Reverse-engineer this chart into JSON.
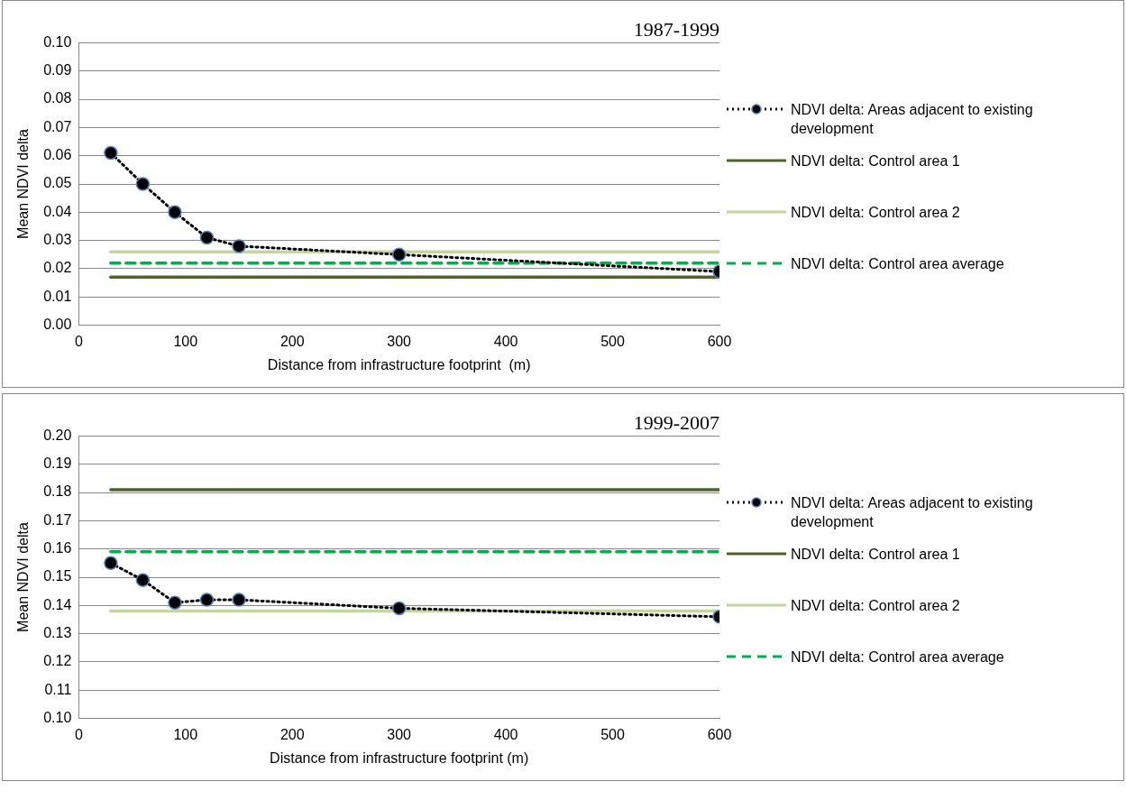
{
  "chart_data": [
    {
      "type": "line",
      "title": "1987-1999",
      "xlabel": "Distance from infrastructure footprint  (m)",
      "ylabel": "Mean NDVI delta",
      "xlim": [
        0,
        600
      ],
      "xticks": [
        0,
        100,
        200,
        300,
        400,
        500,
        600
      ],
      "ylim": [
        0,
        0.1
      ],
      "yticks": [
        {
          "value": 0,
          "label": "0.00"
        },
        {
          "value": 0.01,
          "label": "0.01"
        },
        {
          "value": 0.02,
          "label": "0.02"
        },
        {
          "value": 0.03,
          "label": "0.03"
        },
        {
          "value": 0.04,
          "label": "0.04"
        },
        {
          "value": 0.05,
          "label": "0.05"
        },
        {
          "value": 0.06,
          "label": "0.06"
        },
        {
          "value": 0.07,
          "label": "0.07"
        },
        {
          "value": 0.08,
          "label": "0.08"
        },
        {
          "value": 0.09,
          "label": "0.09"
        },
        {
          "value": 0.1,
          "label": "0.10"
        }
      ],
      "grid": "y",
      "legend": "right",
      "series": [
        {
          "name": "NDVI delta: Areas adjacent to existing development",
          "color": "#000000",
          "x": [
            30,
            60,
            90,
            120,
            150,
            300,
            600
          ],
          "values": [
            0.061,
            0.05,
            0.04,
            0.031,
            0.028,
            0.025,
            0.019
          ],
          "line_style": "dotted",
          "marker": "circle"
        },
        {
          "name": "NDVI delta: Control area 1",
          "color": "#4f6228",
          "x": [
            30,
            600
          ],
          "values": [
            0.017,
            0.017
          ],
          "line_style": "solid",
          "marker": "none"
        },
        {
          "name": "NDVI delta: Control area 2",
          "color": "#c3d69b",
          "x": [
            30,
            600
          ],
          "values": [
            0.026,
            0.026
          ],
          "line_style": "solid",
          "marker": "none"
        },
        {
          "name": "NDVI delta: Control area average",
          "color": "#00b050",
          "x": [
            30,
            600
          ],
          "values": [
            0.022,
            0.022
          ],
          "line_style": "dashed",
          "marker": "none"
        }
      ]
    },
    {
      "type": "line",
      "title": "1999-2007",
      "xlabel": "Distance from infrastructure footprint (m)",
      "ylabel": "Mean NDVI delta",
      "xlim": [
        0,
        600
      ],
      "xticks": [
        0,
        100,
        200,
        300,
        400,
        500,
        600
      ],
      "ylim": [
        0.1,
        0.2
      ],
      "yticks": [
        {
          "value": 0.1,
          "label": "0.10"
        },
        {
          "value": 0.11,
          "label": "0.11"
        },
        {
          "value": 0.12,
          "label": "0.12"
        },
        {
          "value": 0.13,
          "label": "0.13"
        },
        {
          "value": 0.14,
          "label": "0.14"
        },
        {
          "value": 0.15,
          "label": "0.15"
        },
        {
          "value": 0.16,
          "label": "0.16"
        },
        {
          "value": 0.17,
          "label": "0.17"
        },
        {
          "value": 0.18,
          "label": "0.18"
        },
        {
          "value": 0.19,
          "label": "0.19"
        },
        {
          "value": 0.2,
          "label": "0.20"
        }
      ],
      "grid": "y",
      "legend": "right",
      "series": [
        {
          "name": "NDVI delta: Areas adjacent to existing development",
          "color": "#000000",
          "x": [
            30,
            60,
            90,
            120,
            150,
            300,
            600
          ],
          "values": [
            0.155,
            0.149,
            0.141,
            0.142,
            0.142,
            0.139,
            0.136
          ],
          "line_style": "dotted",
          "marker": "circle"
        },
        {
          "name": "NDVI delta: Control area 1",
          "color": "#4f6228",
          "x": [
            30,
            600
          ],
          "values": [
            0.181,
            0.181
          ],
          "line_style": "solid",
          "marker": "none"
        },
        {
          "name": "NDVI delta: Control area 2",
          "color": "#c3d69b",
          "x": [
            30,
            600
          ],
          "values": [
            0.138,
            0.138
          ],
          "line_style": "solid",
          "marker": "none"
        },
        {
          "name": "NDVI delta: Control area average",
          "color": "#00b050",
          "x": [
            30,
            600
          ],
          "values": [
            0.159,
            0.159
          ],
          "line_style": "dashed",
          "marker": "none"
        }
      ]
    }
  ]
}
